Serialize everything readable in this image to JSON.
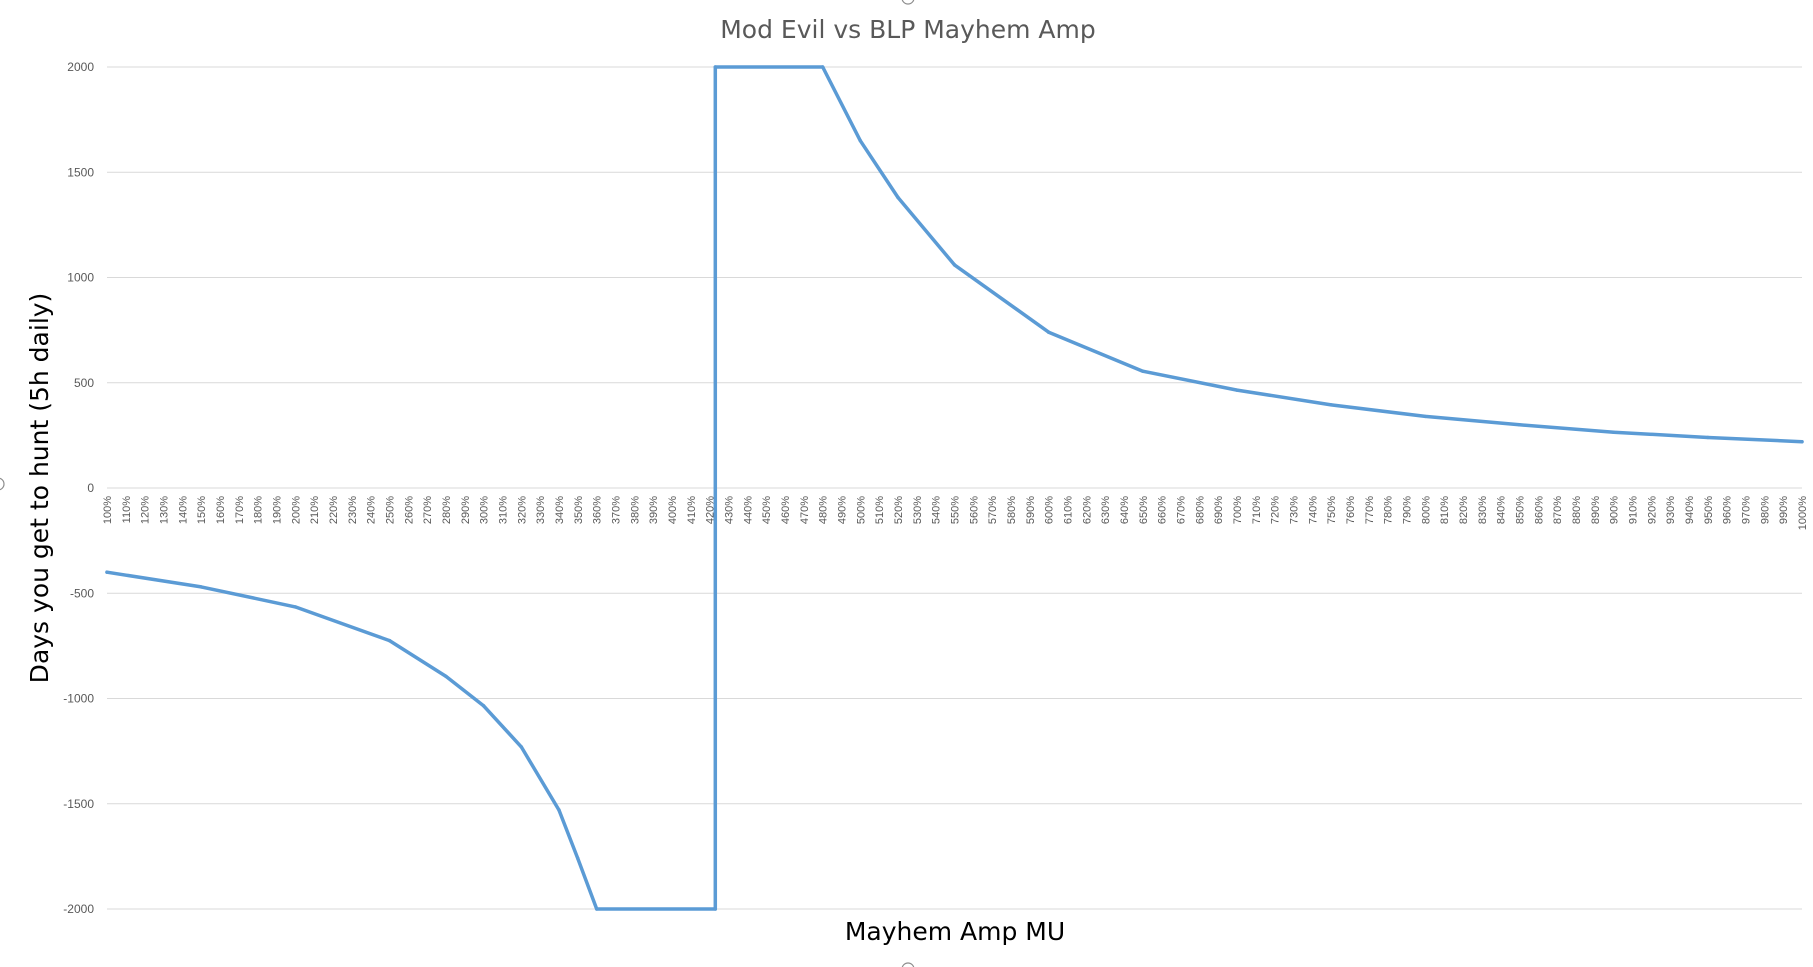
{
  "chart_data": {
    "type": "line",
    "title": "Mod Evil vs BLP Mayhem Amp",
    "xlabel": "Mayhem Amp MU",
    "ylabel": "Days you get to hunt (5h daily)",
    "ylim": [
      -2000,
      2000
    ],
    "yticks": [
      2000,
      1500,
      1000,
      500,
      0,
      -500,
      -1000,
      -1500,
      -2000
    ],
    "xtick_start": 100,
    "xtick_end": 1000,
    "xtick_step": 10,
    "xtick_suffix": "%",
    "grid": true,
    "legend": "none",
    "color": "#5b9bd5",
    "series": [
      {
        "x": [
          100,
          150,
          200,
          250,
          280,
          300,
          320,
          340,
          350,
          360,
          423,
          423,
          480,
          500,
          520,
          550,
          600,
          650,
          700,
          750,
          800,
          850,
          900,
          950,
          1000
        ],
        "values": [
          -400,
          -470,
          -565,
          -725,
          -895,
          -1035,
          -1230,
          -1530,
          -1760,
          -2000,
          -2000,
          2000,
          2000,
          1650,
          1380,
          1060,
          740,
          555,
          465,
          395,
          340,
          300,
          265,
          240,
          220
        ]
      }
    ]
  }
}
